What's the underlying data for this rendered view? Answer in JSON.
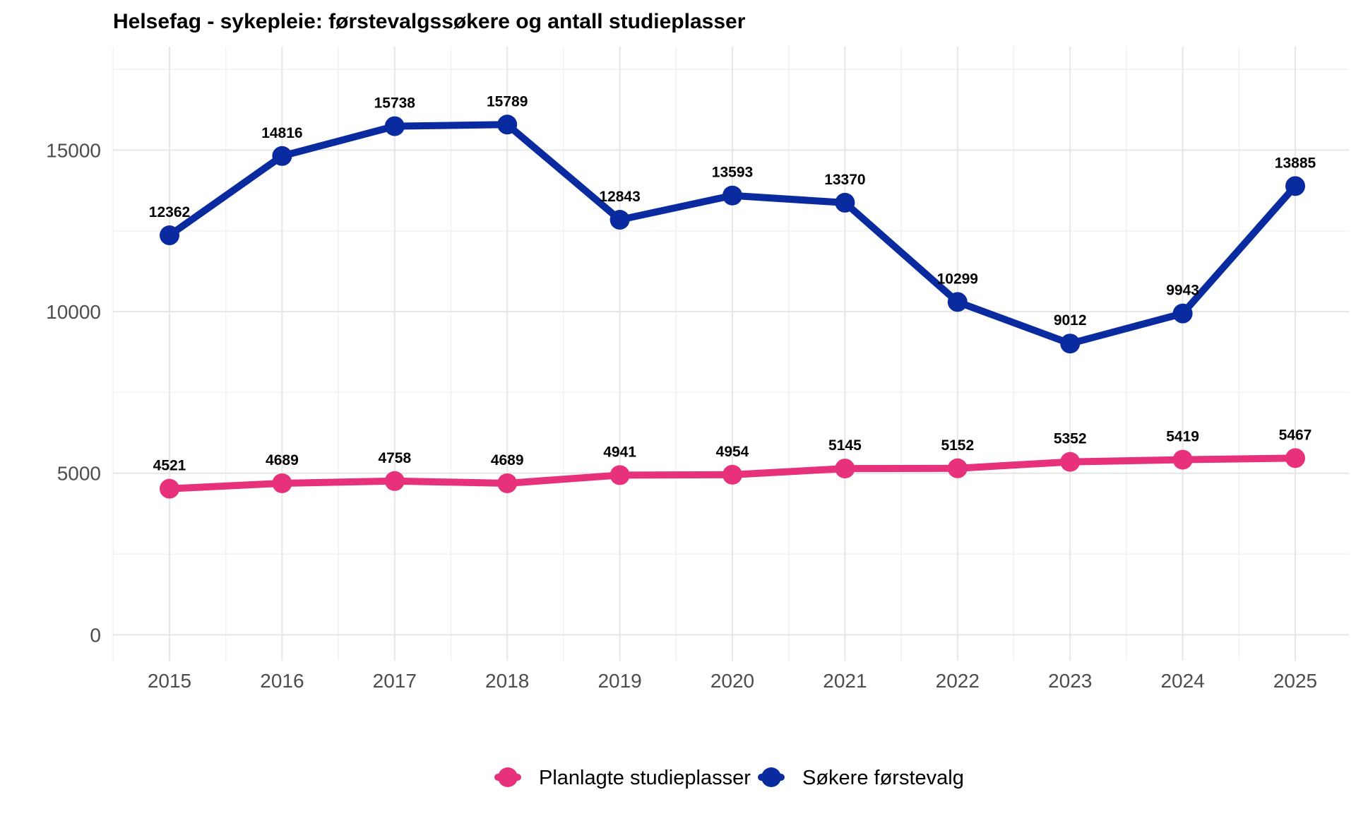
{
  "chart_data": {
    "type": "line",
    "title": "Helsefag - sykepleie: førstevalgssøkere og antall studieplasser",
    "xlabel": "",
    "ylabel": "",
    "x": [
      2015,
      2016,
      2017,
      2018,
      2019,
      2020,
      2021,
      2022,
      2023,
      2024,
      2025
    ],
    "x_tick_labels": [
      "2015",
      "2016",
      "2017",
      "2018",
      "2019",
      "2020",
      "2021",
      "2022",
      "2023",
      "2024",
      "2025"
    ],
    "ylim": [
      -800,
      18200
    ],
    "y_ticks": [
      0,
      5000,
      10000,
      15000
    ],
    "y_tick_labels": [
      "0",
      "5000",
      "10000",
      "15000"
    ],
    "grid": true,
    "legend_position": "bottom",
    "series": [
      {
        "name": "Planlagte studieplasser",
        "color": "#e8317b",
        "values": [
          4521,
          4689,
          4758,
          4689,
          4941,
          4954,
          5145,
          5152,
          5352,
          5419,
          5467
        ],
        "labels": [
          "4521",
          "4689",
          "4758",
          "4689",
          "4941",
          "4954",
          "5145",
          "5152",
          "5352",
          "5419",
          "5467"
        ]
      },
      {
        "name": "Søkere førstevalg",
        "color": "#0a2aa0",
        "values": [
          12362,
          14816,
          15738,
          15789,
          12843,
          13593,
          13370,
          10299,
          9012,
          9943,
          13885
        ],
        "labels": [
          "12362",
          "14816",
          "15738",
          "15789",
          "12843",
          "13593",
          "13370",
          "10299",
          "9012",
          "9943",
          "13885"
        ]
      }
    ]
  }
}
